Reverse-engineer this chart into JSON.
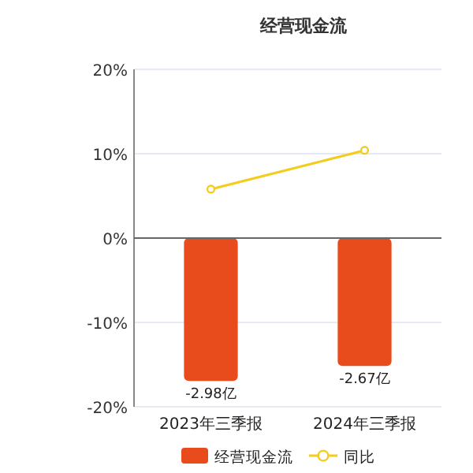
{
  "chart_data": {
    "type": "bar",
    "title": "经营现金流",
    "categories": [
      "2023年三季报",
      "2024年三季报"
    ],
    "series": [
      {
        "name": "经营现金流",
        "axis": "y2",
        "color": "#e84c1d",
        "values": [
          -2.98,
          -2.67
        ],
        "value_labels": [
          "-2.98亿",
          "-2.67亿"
        ]
      },
      {
        "name": "同比",
        "type": "line",
        "color": "#f5cc1a",
        "values": [
          5.8,
          10.4
        ]
      }
    ],
    "ylim": [
      -20,
      20
    ],
    "yticks": [
      {
        "value": 20,
        "label": "20%"
      },
      {
        "value": 10,
        "label": "10%"
      },
      {
        "value": 0,
        "label": "0%"
      },
      {
        "value": -10,
        "label": "-10%"
      },
      {
        "value": -20,
        "label": "-20%"
      }
    ],
    "y2lim": [
      -3.52,
      3.52
    ],
    "grid": "y",
    "legend": "bottom",
    "marker": "circle",
    "line_style": "solid"
  }
}
